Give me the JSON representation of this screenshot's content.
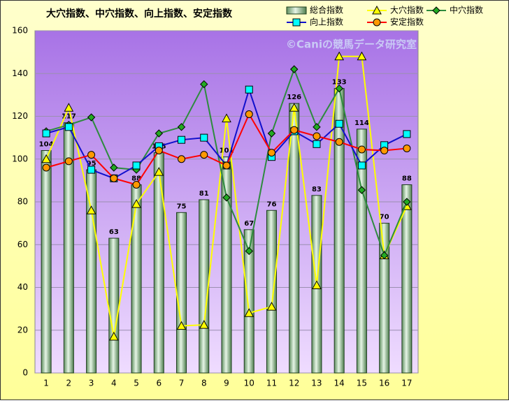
{
  "chart_data": {
    "type": "combo",
    "title": "大穴指数、中穴指数、向上指数、安定指数",
    "watermark": "©Caniの競馬データ研究室",
    "categories": [
      "1",
      "2",
      "3",
      "4",
      "5",
      "6",
      "7",
      "8",
      "9",
      "10",
      "11",
      "12",
      "13",
      "14",
      "15",
      "16",
      "17"
    ],
    "ylim": [
      0,
      160
    ],
    "yticks": [
      0,
      20,
      40,
      60,
      80,
      100,
      120,
      140,
      160
    ],
    "grid": true,
    "legend": "top-right",
    "series": [
      {
        "name": "総合指数",
        "type": "bar",
        "color": "#8fbf8f",
        "data_labels": true,
        "values": [
          104,
          117,
          95,
          63,
          88,
          103,
          75,
          81,
          101,
          67,
          76,
          126,
          83,
          133,
          114,
          70,
          88
        ]
      },
      {
        "name": "大穴指数",
        "type": "line",
        "color": "#ffff00",
        "marker": "triangle",
        "marker_color": "#ffff00",
        "values": [
          100,
          124,
          76,
          17,
          79,
          94,
          22,
          22.5,
          119,
          28,
          31,
          124,
          41,
          148,
          148,
          55,
          78
        ]
      },
      {
        "name": "中穴指数",
        "type": "line",
        "color": "#2e8b3e",
        "marker": "diamond",
        "marker_color": "#22aa22",
        "values": [
          113,
          116,
          119.5,
          96,
          95,
          112,
          115,
          135,
          82,
          57,
          112,
          142,
          115,
          133,
          85.5,
          55,
          80
        ]
      },
      {
        "name": "向上指数",
        "type": "line",
        "color": "#1010cc",
        "marker": "square",
        "marker_color": "#00ffff",
        "values": [
          112,
          115,
          95,
          91,
          97,
          106,
          109,
          110,
          97,
          132.5,
          101,
          113,
          107,
          116.5,
          97,
          106.5,
          111.7
        ]
      },
      {
        "name": "安定指数",
        "type": "line",
        "color": "#ff0000",
        "marker": "circle",
        "marker_color": "#ff9900",
        "values": [
          96,
          99,
          102,
          91,
          88,
          104,
          100,
          102,
          97,
          121,
          103,
          113.6,
          110.7,
          108,
          104.5,
          104,
          105
        ]
      }
    ]
  }
}
